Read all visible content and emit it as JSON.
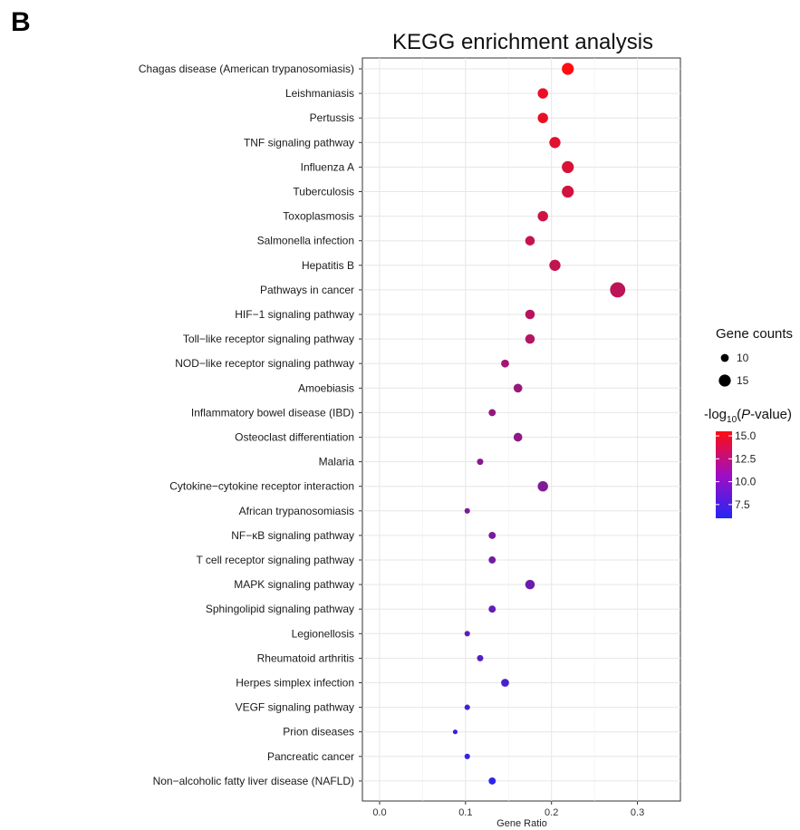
{
  "panel_label": "B",
  "chart_data": {
    "type": "scatter",
    "title": "KEGG enrichment analysis",
    "xlabel": "Gene Ratio",
    "ylabel": "",
    "xlim": [
      -0.02,
      0.35
    ],
    "xticks": [
      "0.0",
      "0.1",
      "0.2",
      "0.3"
    ],
    "xtick_values": [
      0,
      0.1,
      0.2,
      0.3
    ],
    "grid": true,
    "color_scale": {
      "low": "#2525f5",
      "high": "#ff0d10",
      "min": 6.0,
      "max": 15.5
    },
    "size_scale": {
      "min_count": 6,
      "max_count": 19
    },
    "categories": [
      "Chagas disease (American trypanosomiasis)",
      "Leishmaniasis",
      "Pertussis",
      "TNF signaling pathway",
      "Influenza A",
      "Tuberculosis",
      "Toxoplasmosis",
      "Salmonella infection",
      "Hepatitis B",
      "Pathways in cancer",
      "HIF−1 signaling pathway",
      "Toll−like receptor signaling pathway",
      "NOD−like receptor signaling pathway",
      "Amoebiasis",
      "Inflammatory bowel disease (IBD)",
      "Osteoclast differentiation",
      "Malaria",
      "Cytokine−cytokine receptor interaction",
      "African trypanosomiasis",
      "NF−κB signaling pathway",
      "T cell receptor signaling pathway",
      "MAPK signaling pathway",
      "Sphingolipid signaling pathway",
      "Legionellosis",
      "Rheumatoid arthritis",
      "Herpes simplex infection",
      "VEGF signaling pathway",
      "Prion diseases",
      "Pancreatic cancer",
      "Non−alcoholic fatty liver disease (NAFLD)"
    ],
    "points": [
      {
        "category": "Chagas disease (American trypanosomiasis)",
        "gene_ratio": 0.219,
        "count": 15,
        "neglog10p": 15.4
      },
      {
        "category": "Leishmaniasis",
        "gene_ratio": 0.19,
        "count": 13,
        "neglog10p": 14.6
      },
      {
        "category": "Pertussis",
        "gene_ratio": 0.19,
        "count": 13,
        "neglog10p": 14.6
      },
      {
        "category": "TNF signaling pathway",
        "gene_ratio": 0.204,
        "count": 14,
        "neglog10p": 14.2
      },
      {
        "category": "Influenza A",
        "gene_ratio": 0.219,
        "count": 15,
        "neglog10p": 13.9
      },
      {
        "category": "Tuberculosis",
        "gene_ratio": 0.219,
        "count": 15,
        "neglog10p": 13.6
      },
      {
        "category": "Toxoplasmosis",
        "gene_ratio": 0.19,
        "count": 13,
        "neglog10p": 13.3
      },
      {
        "category": "Salmonella infection",
        "gene_ratio": 0.175,
        "count": 12,
        "neglog10p": 13.0
      },
      {
        "category": "Hepatitis B",
        "gene_ratio": 0.204,
        "count": 14,
        "neglog10p": 12.8
      },
      {
        "category": "Pathways in cancer",
        "gene_ratio": 0.277,
        "count": 19,
        "neglog10p": 12.6
      },
      {
        "category": "HIF−1 signaling pathway",
        "gene_ratio": 0.175,
        "count": 12,
        "neglog10p": 12.3
      },
      {
        "category": "Toll−like receptor signaling pathway",
        "gene_ratio": 0.175,
        "count": 12,
        "neglog10p": 12.1
      },
      {
        "category": "NOD−like receptor signaling pathway",
        "gene_ratio": 0.146,
        "count": 10,
        "neglog10p": 11.4
      },
      {
        "category": "Amoebiasis",
        "gene_ratio": 0.161,
        "count": 11,
        "neglog10p": 11.1
      },
      {
        "category": "Inflammatory bowel disease (IBD)",
        "gene_ratio": 0.131,
        "count": 9,
        "neglog10p": 10.8
      },
      {
        "category": "Osteoclast differentiation",
        "gene_ratio": 0.161,
        "count": 11,
        "neglog10p": 10.6
      },
      {
        "category": "Malaria",
        "gene_ratio": 0.117,
        "count": 8,
        "neglog10p": 10.3
      },
      {
        "category": "Cytokine−cytokine receptor interaction",
        "gene_ratio": 0.19,
        "count": 13,
        "neglog10p": 10.0
      },
      {
        "category": "African trypanosomiasis",
        "gene_ratio": 0.102,
        "count": 7,
        "neglog10p": 9.8
      },
      {
        "category": "NF−κB signaling pathway",
        "gene_ratio": 0.131,
        "count": 9,
        "neglog10p": 9.6
      },
      {
        "category": "T cell receptor signaling pathway",
        "gene_ratio": 0.131,
        "count": 9,
        "neglog10p": 9.4
      },
      {
        "category": "MAPK signaling pathway",
        "gene_ratio": 0.175,
        "count": 12,
        "neglog10p": 9.0
      },
      {
        "category": "Sphingolipid signaling pathway",
        "gene_ratio": 0.131,
        "count": 9,
        "neglog10p": 8.7
      },
      {
        "category": "Legionellosis",
        "gene_ratio": 0.102,
        "count": 7,
        "neglog10p": 8.4
      },
      {
        "category": "Rheumatoid arthritis",
        "gene_ratio": 0.117,
        "count": 8,
        "neglog10p": 8.0
      },
      {
        "category": "Herpes simplex infection",
        "gene_ratio": 0.146,
        "count": 10,
        "neglog10p": 7.6
      },
      {
        "category": "VEGF signaling pathway",
        "gene_ratio": 0.102,
        "count": 7,
        "neglog10p": 7.3
      },
      {
        "category": "Prion diseases",
        "gene_ratio": 0.088,
        "count": 6,
        "neglog10p": 7.0
      },
      {
        "category": "Pancreatic cancer",
        "gene_ratio": 0.102,
        "count": 7,
        "neglog10p": 6.8
      },
      {
        "category": "Non−alcoholic fatty liver disease (NAFLD)",
        "gene_ratio": 0.131,
        "count": 9,
        "neglog10p": 6.4
      }
    ],
    "legend": {
      "size_title": "Gene counts",
      "size_entries": [
        {
          "label": "10",
          "count": 10
        },
        {
          "label": "15",
          "count": 15
        }
      ],
      "color_title_prefix": "-log",
      "color_title_sub": "10",
      "color_title_paren_open": "(",
      "color_title_italic": "P",
      "color_title_suffix": "-value)",
      "color_ticks": [
        {
          "label": "15.0",
          "value": 15.0
        },
        {
          "label": "12.5",
          "value": 12.5
        },
        {
          "label": "10.0",
          "value": 10.0
        },
        {
          "label": "7.5",
          "value": 7.5
        }
      ],
      "placement": "right"
    }
  }
}
